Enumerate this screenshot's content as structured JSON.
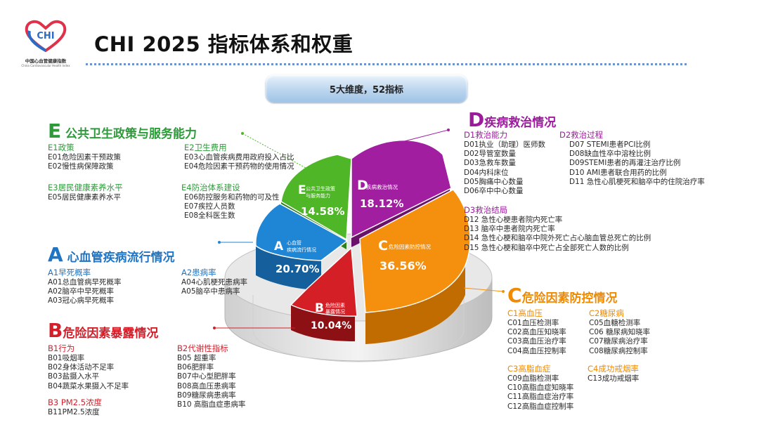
{
  "header": {
    "title": "CHI 2025 指标体系和权重",
    "logo_text": "CHI",
    "logo_caption_cn": "中国心血管健康指数",
    "logo_caption_en": "China Cardiovascular Health Index"
  },
  "banner": "5大维度，52指标",
  "colors": {
    "A": "#1f86d6",
    "B": "#d41f26",
    "C": "#f5900f",
    "D": "#a21ea0",
    "E": "#4fb628"
  },
  "pie_slices": [
    {
      "key": "A",
      "letter": "A",
      "label_lines": [
        "心血管",
        "疾病流行情况"
      ],
      "percent": "20.70%",
      "value": 20.7
    },
    {
      "key": "B",
      "letter": "B",
      "label_lines": [
        "危险因素",
        "暴露情况"
      ],
      "percent": "10.04%",
      "value": 10.04
    },
    {
      "key": "C",
      "letter": "C",
      "label_lines": [
        "危险因素防控情况"
      ],
      "percent": "36.56%",
      "value": 36.56
    },
    {
      "key": "D",
      "letter": "D",
      "label_lines": [
        "疾病救治情况"
      ],
      "percent": "18.12%",
      "value": 18.12
    },
    {
      "key": "E",
      "letter": "E",
      "label_lines": [
        "公共卫生政策",
        "与服务能力"
      ],
      "percent": "14.58%",
      "value": 14.58
    }
  ],
  "E": {
    "letter": "E",
    "label": " 公共卫生政策与服务能力",
    "groups": [
      {
        "title": "E1政策",
        "items": [
          "E01危险因素干预政策",
          "E02慢性病保障政策"
        ]
      },
      {
        "title": "E2卫生费用",
        "items": [
          "E03心血管疾病费用政府投入占比",
          "E04危险因素干预药物的使用情况"
        ]
      },
      {
        "title": "E3居民健康素养水平",
        "items": [
          "E05居民健康素养水平"
        ]
      },
      {
        "title": "E4防治体系建设",
        "items": [
          "E06防控服务和药物的可及性",
          "E07疾控人员数",
          "E08全科医生数"
        ]
      }
    ]
  },
  "A": {
    "letter": "A",
    "label": " 心血管疾病流行情况",
    "groups": [
      {
        "title": "A1早死概率",
        "items": [
          "A01总血管病早死概率",
          "A02脑卒中早死概率",
          "A03冠心病早死概率"
        ]
      },
      {
        "title": "A2患病率",
        "items": [
          "A04心肌梗死患病率",
          "A05脑卒中患病率"
        ]
      }
    ]
  },
  "B": {
    "letter": "B",
    "label": "危险因素暴露情况",
    "groups": [
      {
        "title": "B1行为",
        "items": [
          "B01吸烟率",
          "B02身体活动不足率",
          "B03盐摄入水平",
          "B04蔬菜水果摄入不足率"
        ]
      },
      {
        "title": "B2代谢性指标",
        "items": [
          "B05 超重率",
          "B06肥胖率",
          "B07中心型肥胖率",
          "B08高血压患病率",
          "B09糖尿病患病率",
          "B10 高脂血症患病率"
        ]
      },
      {
        "title": "B3 PM2.5浓度",
        "items": [
          "B11PM2.5浓度"
        ]
      }
    ]
  },
  "D": {
    "letter": "D",
    "label": "疾病救治情况",
    "groups": [
      {
        "title": "D1救治能力",
        "items": [
          "D01执业（助理）医师数",
          "D02导管室数量",
          "D03急救车数量",
          "D04内科床位",
          "D05胸痛中心数量",
          "D06卒中中心数量"
        ]
      },
      {
        "title": "D2救治过程",
        "items": [
          "D07 STEMI患者PCI比例",
          "D08缺血性卒中溶栓比例",
          "D09STEMI患者的再灌注治疗比例",
          "D10 AMI患者联合用药的比例",
          "D11 急性心肌梗死和脑卒中的住院治疗率"
        ]
      },
      {
        "title": "D3救治结局",
        "items": [
          "D12 急性心梗患者院内死亡率",
          "D13 脑卒中患者院内死亡率",
          "D14 急性心梗和脑卒中院外死亡占心脑血管总死亡的比例",
          "D15 急性心梗和脑卒中死亡占全部死亡人数的比例"
        ]
      }
    ]
  },
  "C": {
    "letter": "C",
    "label": "危险因素防控情况",
    "groups": [
      {
        "title": "C1高血压",
        "items": [
          "C01血压检测率",
          "C02高血压知晓率",
          "C03高血压治疗率",
          "C04高血压控制率"
        ]
      },
      {
        "title": "C2糖尿病",
        "items": [
          "C05血糖检测率",
          "C06 糖尿病知晓率",
          "C07糖尿病治疗率",
          "C08糖尿病控制率"
        ]
      },
      {
        "title": "C3高脂血症",
        "items": [
          "C09血脂检测率",
          "C10高脂血症知晓率",
          "C11高脂血症治疗率",
          "C12高脂血症控制率"
        ]
      },
      {
        "title": "C4成功戒烟率",
        "items": [
          "C13成功戒烟率"
        ]
      }
    ]
  }
}
